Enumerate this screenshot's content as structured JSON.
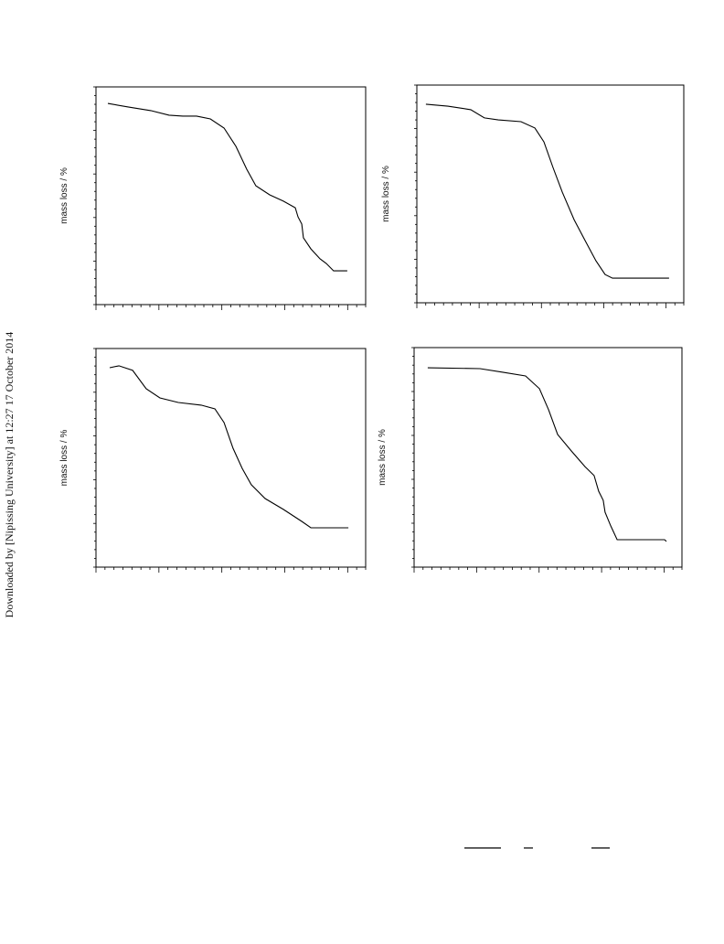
{
  "chart_data": [
    {
      "type": "line",
      "ylabel": "mass loss / %",
      "xlim": [
        0,
        100
      ],
      "ylim": [
        0,
        100
      ],
      "color": "#000000",
      "x": [
        4.4,
        11.9,
        20.3,
        27.1,
        32.2,
        37.3,
        42.4,
        47.5,
        51.9,
        55.9,
        59.3,
        64.4,
        69.5,
        73.9,
        74.9,
        76.3,
        76.9,
        79.7,
        83.1,
        85.4,
        88.1,
        93.2
      ],
      "values": [
        92.4,
        90.8,
        89.1,
        87.0,
        86.6,
        86.6,
        85.3,
        81.1,
        72.7,
        62.2,
        54.6,
        50.4,
        47.5,
        44.5,
        40.3,
        37.0,
        30.7,
        25.6,
        21.0,
        18.9,
        15.5,
        15.5
      ]
    },
    {
      "type": "line",
      "ylabel": "mass loss / %",
      "xlim": [
        0,
        100
      ],
      "ylim": [
        0,
        100
      ],
      "color": "#000000",
      "x": [
        3.4,
        11.6,
        20.2,
        25.3,
        30.5,
        39.0,
        44.2,
        47.6,
        51.0,
        54.5,
        58.9,
        63.0,
        67.1,
        70.5,
        73.3,
        94.5
      ],
      "values": [
        91.2,
        90.3,
        88.7,
        84.9,
        84.0,
        83.2,
        80.3,
        73.9,
        62.2,
        50.8,
        38.2,
        28.6,
        19.3,
        13.0,
        11.3,
        11.3
      ]
    },
    {
      "type": "line",
      "ylabel": "mass loss / %",
      "xlim": [
        0,
        100
      ],
      "ylim": [
        0,
        100
      ],
      "color": "#000000",
      "x": [
        5.1,
        8.5,
        13.6,
        18.6,
        23.7,
        30.5,
        39.0,
        44.1,
        47.5,
        50.8,
        54.2,
        57.6,
        62.7,
        69.5,
        76.3,
        79.7,
        93.6
      ],
      "values": [
        91.2,
        92.1,
        90.0,
        81.6,
        77.4,
        75.3,
        74.1,
        72.4,
        66.1,
        54.4,
        45.2,
        37.7,
        31.4,
        26.4,
        20.9,
        18.0,
        18.0
      ]
    },
    {
      "type": "line",
      "ylabel": "mass loss / %",
      "xlim": [
        0,
        100
      ],
      "ylim": [
        0,
        100
      ],
      "color": "#000000",
      "x": [
        5.1,
        24.6,
        33.1,
        41.6,
        46.8,
        50.2,
        53.6,
        58.7,
        63.8,
        67.2,
        68.9,
        70.6,
        71.3,
        73.4,
        75.8,
        93.5,
        94.2
      ],
      "values": [
        90.8,
        90.4,
        88.8,
        87.1,
        81.3,
        71.7,
        60.4,
        52.9,
        45.8,
        41.7,
        34.6,
        30.4,
        25.0,
        18.8,
        12.5,
        12.5,
        11.7
      ]
    }
  ],
  "side_note": "Downloaded by [Nipissing University] at 12:27 17 October 2014"
}
